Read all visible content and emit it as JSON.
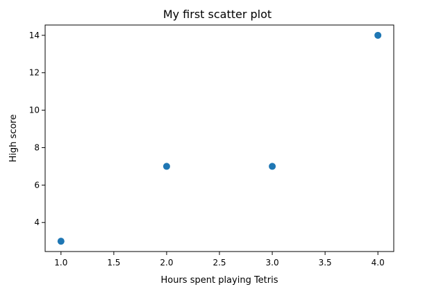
{
  "chart_data": {
    "type": "scatter",
    "title": "My first scatter plot",
    "xlabel": "Hours spent playing Tetris",
    "ylabel": "High score",
    "x": [
      1.0,
      2.0,
      3.0,
      4.0
    ],
    "y": [
      3,
      7,
      7,
      14
    ],
    "xlim": [
      0.85,
      4.15
    ],
    "ylim": [
      2.45,
      14.55
    ],
    "xticks": [
      1.0,
      1.5,
      2.0,
      2.5,
      3.0,
      3.5,
      4.0
    ],
    "xtick_labels": [
      "1.0",
      "1.5",
      "2.0",
      "2.5",
      "3.0",
      "3.5",
      "4.0"
    ],
    "yticks": [
      4,
      6,
      8,
      10,
      12,
      14
    ],
    "ytick_labels": [
      "4",
      "6",
      "8",
      "10",
      "12",
      "14"
    ],
    "grid": false,
    "legend": "none",
    "colors": {
      "marker": "#1f77b4",
      "axis": "#000000"
    }
  }
}
